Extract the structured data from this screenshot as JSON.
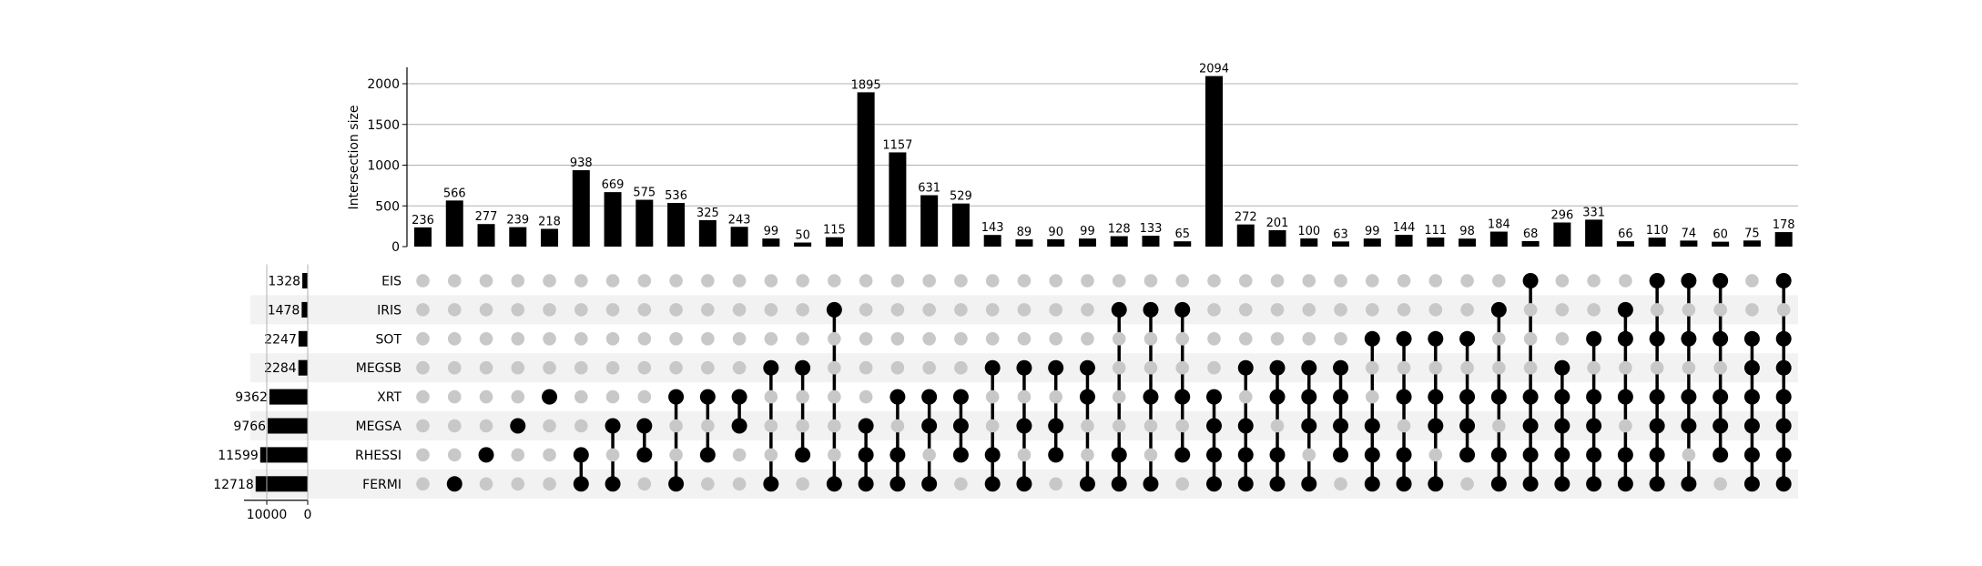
{
  "chart_data": {
    "type": "upset",
    "ylabel": "Intersection size",
    "yticks": [
      0,
      500,
      1000,
      1500,
      2000
    ],
    "ylim": [
      0,
      2200
    ],
    "set_size_ticks": [
      10000,
      0
    ],
    "set_size_lim": [
      0,
      14000
    ],
    "grid": true,
    "sets": [
      {
        "name": "EIS",
        "size": 1328
      },
      {
        "name": "IRIS",
        "size": 1478
      },
      {
        "name": "SOT",
        "size": 2247
      },
      {
        "name": "MEGSB",
        "size": 2284
      },
      {
        "name": "XRT",
        "size": 9362
      },
      {
        "name": "MEGSA",
        "size": 9766
      },
      {
        "name": "RHESSI",
        "size": 11599
      },
      {
        "name": "FERMI",
        "size": 12718
      }
    ],
    "intersections": [
      {
        "value": 236,
        "members": []
      },
      {
        "value": 566,
        "members": [
          "FERMI"
        ]
      },
      {
        "value": 277,
        "members": [
          "RHESSI"
        ]
      },
      {
        "value": 239,
        "members": [
          "MEGSA"
        ]
      },
      {
        "value": 218,
        "members": [
          "XRT"
        ]
      },
      {
        "value": 938,
        "members": [
          "RHESSI",
          "FERMI"
        ]
      },
      {
        "value": 669,
        "members": [
          "MEGSA",
          "FERMI"
        ]
      },
      {
        "value": 575,
        "members": [
          "MEGSA",
          "RHESSI"
        ]
      },
      {
        "value": 536,
        "members": [
          "XRT",
          "FERMI"
        ]
      },
      {
        "value": 325,
        "members": [
          "XRT",
          "RHESSI"
        ]
      },
      {
        "value": 243,
        "members": [
          "XRT",
          "MEGSA"
        ]
      },
      {
        "value": 99,
        "members": [
          "MEGSB",
          "FERMI"
        ]
      },
      {
        "value": 50,
        "members": [
          "MEGSB",
          "RHESSI"
        ]
      },
      {
        "value": 115,
        "members": [
          "IRIS",
          "FERMI"
        ]
      },
      {
        "value": 1895,
        "members": [
          "MEGSA",
          "RHESSI",
          "FERMI"
        ]
      },
      {
        "value": 1157,
        "members": [
          "XRT",
          "RHESSI",
          "FERMI"
        ]
      },
      {
        "value": 631,
        "members": [
          "XRT",
          "MEGSA",
          "FERMI"
        ]
      },
      {
        "value": 529,
        "members": [
          "XRT",
          "MEGSA",
          "RHESSI"
        ]
      },
      {
        "value": 143,
        "members": [
          "MEGSB",
          "RHESSI",
          "FERMI"
        ]
      },
      {
        "value": 89,
        "members": [
          "MEGSB",
          "MEGSA",
          "FERMI"
        ]
      },
      {
        "value": 90,
        "members": [
          "MEGSB",
          "MEGSA",
          "RHESSI"
        ]
      },
      {
        "value": 99,
        "members": [
          "MEGSB",
          "XRT",
          "FERMI"
        ]
      },
      {
        "value": 128,
        "members": [
          "IRIS",
          "RHESSI",
          "FERMI"
        ]
      },
      {
        "value": 133,
        "members": [
          "IRIS",
          "XRT",
          "FERMI"
        ]
      },
      {
        "value": 65,
        "members": [
          "IRIS",
          "XRT",
          "RHESSI"
        ]
      },
      {
        "value": 2094,
        "members": [
          "XRT",
          "MEGSA",
          "RHESSI",
          "FERMI"
        ]
      },
      {
        "value": 272,
        "members": [
          "MEGSB",
          "MEGSA",
          "RHESSI",
          "FERMI"
        ]
      },
      {
        "value": 201,
        "members": [
          "MEGSB",
          "XRT",
          "RHESSI",
          "FERMI"
        ]
      },
      {
        "value": 100,
        "members": [
          "MEGSB",
          "XRT",
          "MEGSA",
          "FERMI"
        ]
      },
      {
        "value": 63,
        "members": [
          "MEGSB",
          "XRT",
          "MEGSA",
          "RHESSI"
        ]
      },
      {
        "value": 99,
        "members": [
          "SOT",
          "MEGSA",
          "RHESSI",
          "FERMI"
        ]
      },
      {
        "value": 144,
        "members": [
          "SOT",
          "XRT",
          "RHESSI",
          "FERMI"
        ]
      },
      {
        "value": 111,
        "members": [
          "SOT",
          "XRT",
          "MEGSA",
          "FERMI"
        ]
      },
      {
        "value": 98,
        "members": [
          "SOT",
          "XRT",
          "MEGSA",
          "RHESSI"
        ]
      },
      {
        "value": 184,
        "members": [
          "IRIS",
          "XRT",
          "RHESSI",
          "FERMI"
        ]
      },
      {
        "value": 68,
        "members": [
          "EIS",
          "XRT",
          "MEGSA",
          "RHESSI",
          "FERMI"
        ]
      },
      {
        "value": 296,
        "members": [
          "MEGSB",
          "XRT",
          "MEGSA",
          "RHESSI",
          "FERMI"
        ]
      },
      {
        "value": 331,
        "members": [
          "SOT",
          "XRT",
          "MEGSA",
          "RHESSI",
          "FERMI"
        ]
      },
      {
        "value": 66,
        "members": [
          "IRIS",
          "SOT",
          "XRT",
          "RHESSI",
          "FERMI"
        ]
      },
      {
        "value": 110,
        "members": [
          "EIS",
          "SOT",
          "XRT",
          "MEGSA",
          "RHESSI",
          "FERMI"
        ]
      },
      {
        "value": 74,
        "members": [
          "EIS",
          "SOT",
          "XRT",
          "MEGSA",
          "FERMI"
        ]
      },
      {
        "value": 60,
        "members": [
          "EIS",
          "SOT",
          "XRT",
          "MEGSA",
          "RHESSI"
        ]
      },
      {
        "value": 75,
        "members": [
          "SOT",
          "MEGSB",
          "XRT",
          "MEGSA",
          "RHESSI",
          "FERMI"
        ]
      },
      {
        "value": 178,
        "members": [
          "EIS",
          "SOT",
          "MEGSB",
          "XRT",
          "MEGSA",
          "RHESSI",
          "FERMI"
        ]
      }
    ],
    "colors": {
      "bar": "#000000",
      "dot_active": "#000000",
      "dot_inactive": "#c8c8c8",
      "stripe": "#f2f2f2",
      "grid": "#b0b0b0"
    }
  }
}
